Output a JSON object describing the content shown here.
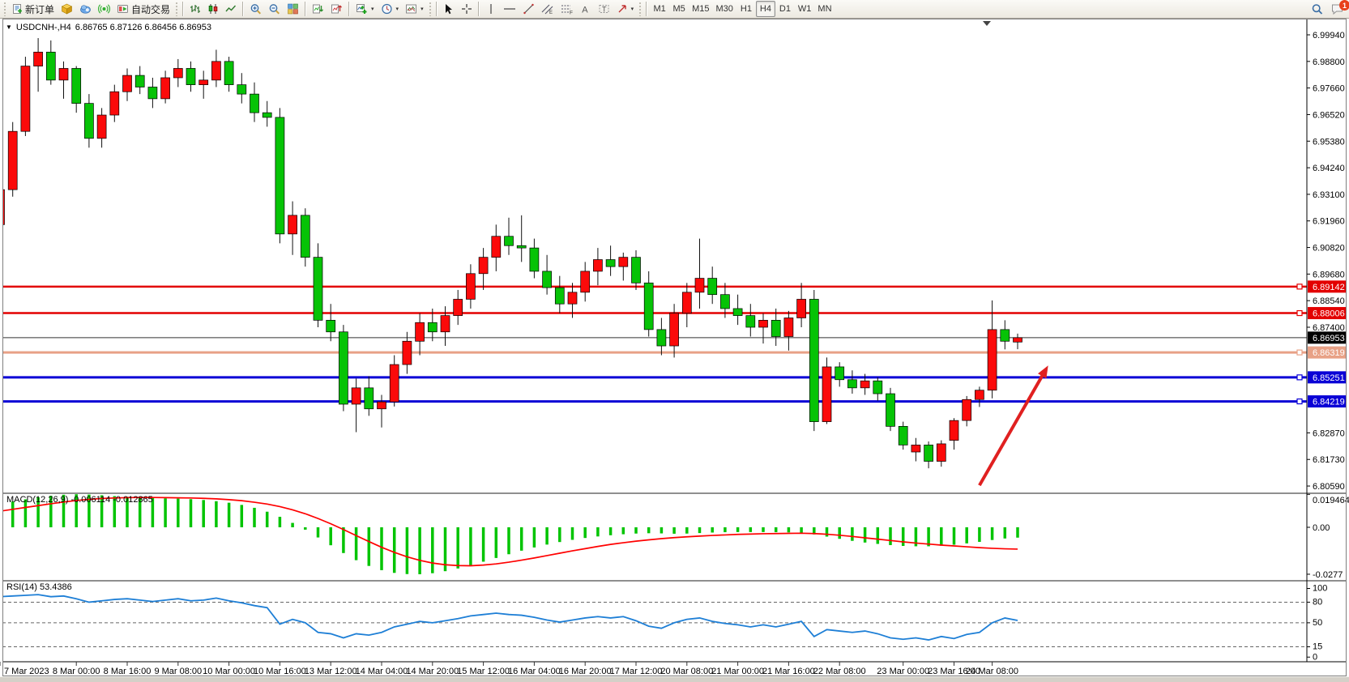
{
  "toolbar": {
    "new_order": "新订单",
    "auto_trading": "自动交易",
    "timeframes": [
      "M1",
      "M5",
      "M15",
      "M30",
      "H1",
      "H4",
      "D1",
      "W1",
      "MN"
    ],
    "active_timeframe": "H4",
    "notification_count": "1"
  },
  "chart": {
    "title": "USDCNH-,H4",
    "ohlc": "6.86765 6.87126 6.86456 6.86953"
  },
  "chart_data": {
    "type": "candlestick",
    "symbol": "USDCNH-",
    "timeframe": "H4",
    "open": 6.86765,
    "high": 6.87126,
    "low": 6.86456,
    "close": 6.86953,
    "colors": {
      "bull": "#fb0a0a",
      "bear": "#06c306",
      "wick": "#111111",
      "macd_hist": "#00c400",
      "macd_signal": "#ff0000",
      "rsi": "#1e7fd6",
      "line_red": "#e30000",
      "line_blue": "#0a00d6",
      "line_salmon": "#e8a186",
      "bid_line": "#333333",
      "arrow": "#e02020",
      "axis_text": "#000000"
    },
    "price_ticks": [
      "6.99940",
      "6.98800",
      "6.97660",
      "6.96520",
      "6.95380",
      "6.94240",
      "6.93100",
      "6.91960",
      "6.90820",
      "6.89680",
      "6.88540",
      "6.87400",
      "6.82870",
      "6.81730",
      "6.80590"
    ],
    "hlines": [
      {
        "price": 6.89142,
        "label": "6.89142",
        "color": "#e30000",
        "width": 2.5
      },
      {
        "price": 6.88006,
        "label": "6.88006",
        "color": "#e30000",
        "width": 2.5
      },
      {
        "price": 6.86319,
        "label": "6.86319",
        "color": "#e8a186",
        "width": 3
      },
      {
        "price": 6.85251,
        "label": "6.85251",
        "color": "#0a00d6",
        "width": 3
      },
      {
        "price": 6.84219,
        "label": "6.84219",
        "color": "#0a00d6",
        "width": 3
      }
    ],
    "bid": {
      "price": 6.86953,
      "label": "6.86953",
      "color": "#333333",
      "bg": "#000000"
    },
    "arrow": {
      "from_bar": 77.0,
      "from_price": 6.8062,
      "to_bar": 82.4,
      "to_price": 6.8576,
      "width": 4
    },
    "time_labels": [
      "7 Mar 2023",
      "8 Mar 00:00",
      "8 Mar 16:00",
      "9 Mar 08:00",
      "10 Mar 00:00",
      "10 Mar 16:00",
      "13 Mar 12:00",
      "14 Mar 04:00",
      "14 Mar 20:00",
      "15 Mar 12:00",
      "16 Mar 04:00",
      "16 Mar 20:00",
      "17 Mar 12:00",
      "20 Mar 08:00",
      "21 Mar 00:00",
      "21 Mar 16:00",
      "22 Mar 08:00",
      "23 Mar 00:00",
      "23 Mar 16:00",
      "24 Mar 08:00"
    ],
    "time_label_bars": [
      0,
      6,
      10,
      14,
      18,
      22,
      26,
      30,
      34,
      38,
      42,
      46,
      50,
      54,
      58,
      62,
      66,
      71,
      75,
      78
    ],
    "candles": [
      [
        6.918,
        6.936,
        6.914,
        6.933
      ],
      [
        6.933,
        6.962,
        6.93,
        6.958
      ],
      [
        6.958,
        6.99,
        6.956,
        6.986
      ],
      [
        6.986,
        6.998,
        6.975,
        6.992
      ],
      [
        6.992,
        6.997,
        6.978,
        6.98
      ],
      [
        6.98,
        6.988,
        6.972,
        6.985
      ],
      [
        6.985,
        6.986,
        6.966,
        6.97
      ],
      [
        6.97,
        6.974,
        6.951,
        6.955
      ],
      [
        6.955,
        6.968,
        6.951,
        6.965
      ],
      [
        6.965,
        6.978,
        6.962,
        6.975
      ],
      [
        6.975,
        6.985,
        6.971,
        6.982
      ],
      [
        6.982,
        6.986,
        6.974,
        6.977
      ],
      [
        6.977,
        6.981,
        6.968,
        6.972
      ],
      [
        6.972,
        6.984,
        6.97,
        6.981
      ],
      [
        6.981,
        6.989,
        6.977,
        6.985
      ],
      [
        6.985,
        6.988,
        6.975,
        6.978
      ],
      [
        6.978,
        6.984,
        6.972,
        6.98
      ],
      [
        6.98,
        6.993,
        6.977,
        6.988
      ],
      [
        6.988,
        6.99,
        6.975,
        6.978
      ],
      [
        6.978,
        6.983,
        6.97,
        6.974
      ],
      [
        6.974,
        6.979,
        6.962,
        6.966
      ],
      [
        6.966,
        6.971,
        6.96,
        6.964
      ],
      [
        6.964,
        6.968,
        6.91,
        6.914
      ],
      [
        6.914,
        6.928,
        6.905,
        6.922
      ],
      [
        6.922,
        6.925,
        6.9,
        6.904
      ],
      [
        6.904,
        6.91,
        6.874,
        6.877
      ],
      [
        6.877,
        6.884,
        6.868,
        6.872
      ],
      [
        6.872,
        6.875,
        6.838,
        6.841
      ],
      [
        6.841,
        6.852,
        6.829,
        6.848
      ],
      [
        6.848,
        6.853,
        6.836,
        6.839
      ],
      [
        6.839,
        6.845,
        6.831,
        6.842
      ],
      [
        6.842,
        6.862,
        6.84,
        6.858
      ],
      [
        6.858,
        6.872,
        6.854,
        6.868
      ],
      [
        6.868,
        6.88,
        6.862,
        6.876
      ],
      [
        6.876,
        6.882,
        6.868,
        6.872
      ],
      [
        6.872,
        6.883,
        6.866,
        6.879
      ],
      [
        6.879,
        6.89,
        6.875,
        6.886
      ],
      [
        6.886,
        6.901,
        6.882,
        6.897
      ],
      [
        6.897,
        6.908,
        6.89,
        6.904
      ],
      [
        6.904,
        6.918,
        6.898,
        6.913
      ],
      [
        6.913,
        6.921,
        6.905,
        6.909
      ],
      [
        6.909,
        6.922,
        6.902,
        6.908
      ],
      [
        6.908,
        6.912,
        6.895,
        6.898
      ],
      [
        6.898,
        6.905,
        6.888,
        6.891
      ],
      [
        6.891,
        6.896,
        6.88,
        6.884
      ],
      [
        6.884,
        6.893,
        6.878,
        6.889
      ],
      [
        6.889,
        6.902,
        6.885,
        6.898
      ],
      [
        6.898,
        6.908,
        6.892,
        6.903
      ],
      [
        6.903,
        6.909,
        6.896,
        6.9
      ],
      [
        6.9,
        6.906,
        6.894,
        6.904
      ],
      [
        6.904,
        6.907,
        6.89,
        6.893
      ],
      [
        6.893,
        6.898,
        6.87,
        6.873
      ],
      [
        6.873,
        6.878,
        6.862,
        6.866
      ],
      [
        6.866,
        6.884,
        6.861,
        6.88
      ],
      [
        6.88,
        6.893,
        6.874,
        6.889
      ],
      [
        6.889,
        6.912,
        6.882,
        6.895
      ],
      [
        6.895,
        6.9,
        6.884,
        6.888
      ],
      [
        6.888,
        6.893,
        6.878,
        6.882
      ],
      [
        6.882,
        6.888,
        6.875,
        6.879
      ],
      [
        6.879,
        6.884,
        6.87,
        6.874
      ],
      [
        6.874,
        6.88,
        6.867,
        6.877
      ],
      [
        6.877,
        6.882,
        6.866,
        6.87
      ],
      [
        6.87,
        6.881,
        6.864,
        6.878
      ],
      [
        6.878,
        6.893,
        6.874,
        6.886
      ],
      [
        6.886,
        6.89,
        6.8295,
        6.8335
      ],
      [
        6.8335,
        6.861,
        6.8325,
        6.857
      ],
      [
        6.857,
        6.859,
        6.8485,
        6.8515
      ],
      [
        6.8515,
        6.8555,
        6.8455,
        6.848
      ],
      [
        6.848,
        6.854,
        6.845,
        6.851
      ],
      [
        6.851,
        6.8525,
        6.8425,
        6.8455
      ],
      [
        6.8455,
        6.848,
        6.8295,
        6.8315
      ],
      [
        6.8315,
        6.8335,
        6.8215,
        6.8235
      ],
      [
        6.8205,
        6.8265,
        6.8165,
        6.8235
      ],
      [
        6.8235,
        6.825,
        6.8135,
        6.8165
      ],
      [
        6.8165,
        6.8255,
        6.8142,
        6.824
      ],
      [
        6.8255,
        6.835,
        6.8215,
        6.834
      ],
      [
        6.834,
        6.8445,
        6.8315,
        6.843
      ],
      [
        6.843,
        6.8485,
        6.8398,
        6.847
      ],
      [
        6.847,
        6.8855,
        6.8435,
        6.873
      ],
      [
        6.873,
        6.877,
        6.8645,
        6.868
      ],
      [
        6.86765,
        6.87126,
        6.86456,
        6.86953
      ]
    ],
    "macd": {
      "label": "MACD(12,26,9) -0.006114 -0.012865",
      "main_value": -0.006114,
      "signal_value": -0.012865,
      "ticks": [
        {
          "v": 0.019464,
          "t": "0.019464"
        },
        {
          "v": 0,
          "t": "0.00"
        },
        {
          "v": -0.0277,
          "t": "-0.0277"
        }
      ],
      "histogram": [
        0.0138,
        0.0152,
        0.0165,
        0.0177,
        0.0186,
        0.0192,
        0.0195,
        0.0193,
        0.0189,
        0.0184,
        0.018,
        0.0177,
        0.0174,
        0.0171,
        0.0169,
        0.0166,
        0.0161,
        0.0154,
        0.0145,
        0.0132,
        0.0115,
        0.0092,
        0.0062,
        0.0026,
        -0.0014,
        -0.006,
        -0.0106,
        -0.0152,
        -0.0194,
        -0.0228,
        -0.0253,
        -0.0269,
        -0.0276,
        -0.0277,
        -0.0271,
        -0.0259,
        -0.0243,
        -0.0224,
        -0.0203,
        -0.0181,
        -0.0159,
        -0.0138,
        -0.0119,
        -0.0102,
        -0.0087,
        -0.0074,
        -0.0063,
        -0.0054,
        -0.0047,
        -0.0041,
        -0.0037,
        -0.0035,
        -0.0036,
        -0.0038,
        -0.0037,
        -0.0034,
        -0.0031,
        -0.0029,
        -0.0028,
        -0.0028,
        -0.0028,
        -0.0029,
        -0.003,
        -0.0031,
        -0.0042,
        -0.0055,
        -0.0068,
        -0.008,
        -0.009,
        -0.0098,
        -0.0105,
        -0.011,
        -0.0112,
        -0.0112,
        -0.0109,
        -0.0103,
        -0.0095,
        -0.0086,
        -0.0075,
        -0.0066,
        -0.00611
      ],
      "signal": [
        0.0095,
        0.0106,
        0.0117,
        0.0128,
        0.0139,
        0.0149,
        0.0158,
        0.0165,
        0.017,
        0.0173,
        0.0175,
        0.0176,
        0.0176,
        0.0175,
        0.0174,
        0.0173,
        0.0171,
        0.0168,
        0.0163,
        0.0157,
        0.0148,
        0.0137,
        0.0122,
        0.0103,
        0.008,
        0.0052,
        0.0021,
        -0.0013,
        -0.0049,
        -0.0084,
        -0.0118,
        -0.0148,
        -0.0174,
        -0.0195,
        -0.0211,
        -0.0221,
        -0.0226,
        -0.0227,
        -0.0223,
        -0.0216,
        -0.0206,
        -0.0194,
        -0.0181,
        -0.0167,
        -0.0153,
        -0.0139,
        -0.0126,
        -0.0113,
        -0.0101,
        -0.0091,
        -0.0082,
        -0.0074,
        -0.0067,
        -0.0061,
        -0.0056,
        -0.0052,
        -0.0048,
        -0.0045,
        -0.0042,
        -0.004,
        -0.0038,
        -0.0037,
        -0.0036,
        -0.0035,
        -0.0037,
        -0.0041,
        -0.0047,
        -0.0054,
        -0.0062,
        -0.007,
        -0.0078,
        -0.0086,
        -0.0093,
        -0.0099,
        -0.0105,
        -0.011,
        -0.0115,
        -0.012,
        -0.0124,
        -0.0127,
        -0.012865
      ]
    },
    "rsi": {
      "label": "RSI(14) 53.4386",
      "value": 53.4386,
      "levels": [
        80,
        50,
        15
      ],
      "ticks": [
        {
          "v": 100,
          "t": "100"
        },
        {
          "v": 80,
          "t": "80"
        },
        {
          "v": 50,
          "t": "50"
        },
        {
          "v": 15,
          "t": "15"
        },
        {
          "v": 0,
          "t": "0"
        }
      ],
      "values": [
        88,
        89,
        90,
        91,
        88,
        89,
        85,
        80,
        82,
        84,
        85,
        83,
        81,
        83,
        85,
        82,
        83,
        86,
        82,
        79,
        75,
        72,
        48,
        55,
        50,
        36,
        34,
        28,
        34,
        32,
        36,
        44,
        48,
        52,
        50,
        53,
        56,
        60,
        62,
        64,
        62,
        61,
        58,
        54,
        51,
        54,
        57,
        59,
        57,
        59,
        53,
        45,
        42,
        50,
        55,
        57,
        52,
        49,
        47,
        44,
        47,
        44,
        48,
        52,
        30,
        40,
        38,
        36,
        38,
        34,
        28,
        26,
        28,
        25,
        30,
        27,
        33,
        36,
        50,
        57,
        53.4
      ]
    }
  }
}
